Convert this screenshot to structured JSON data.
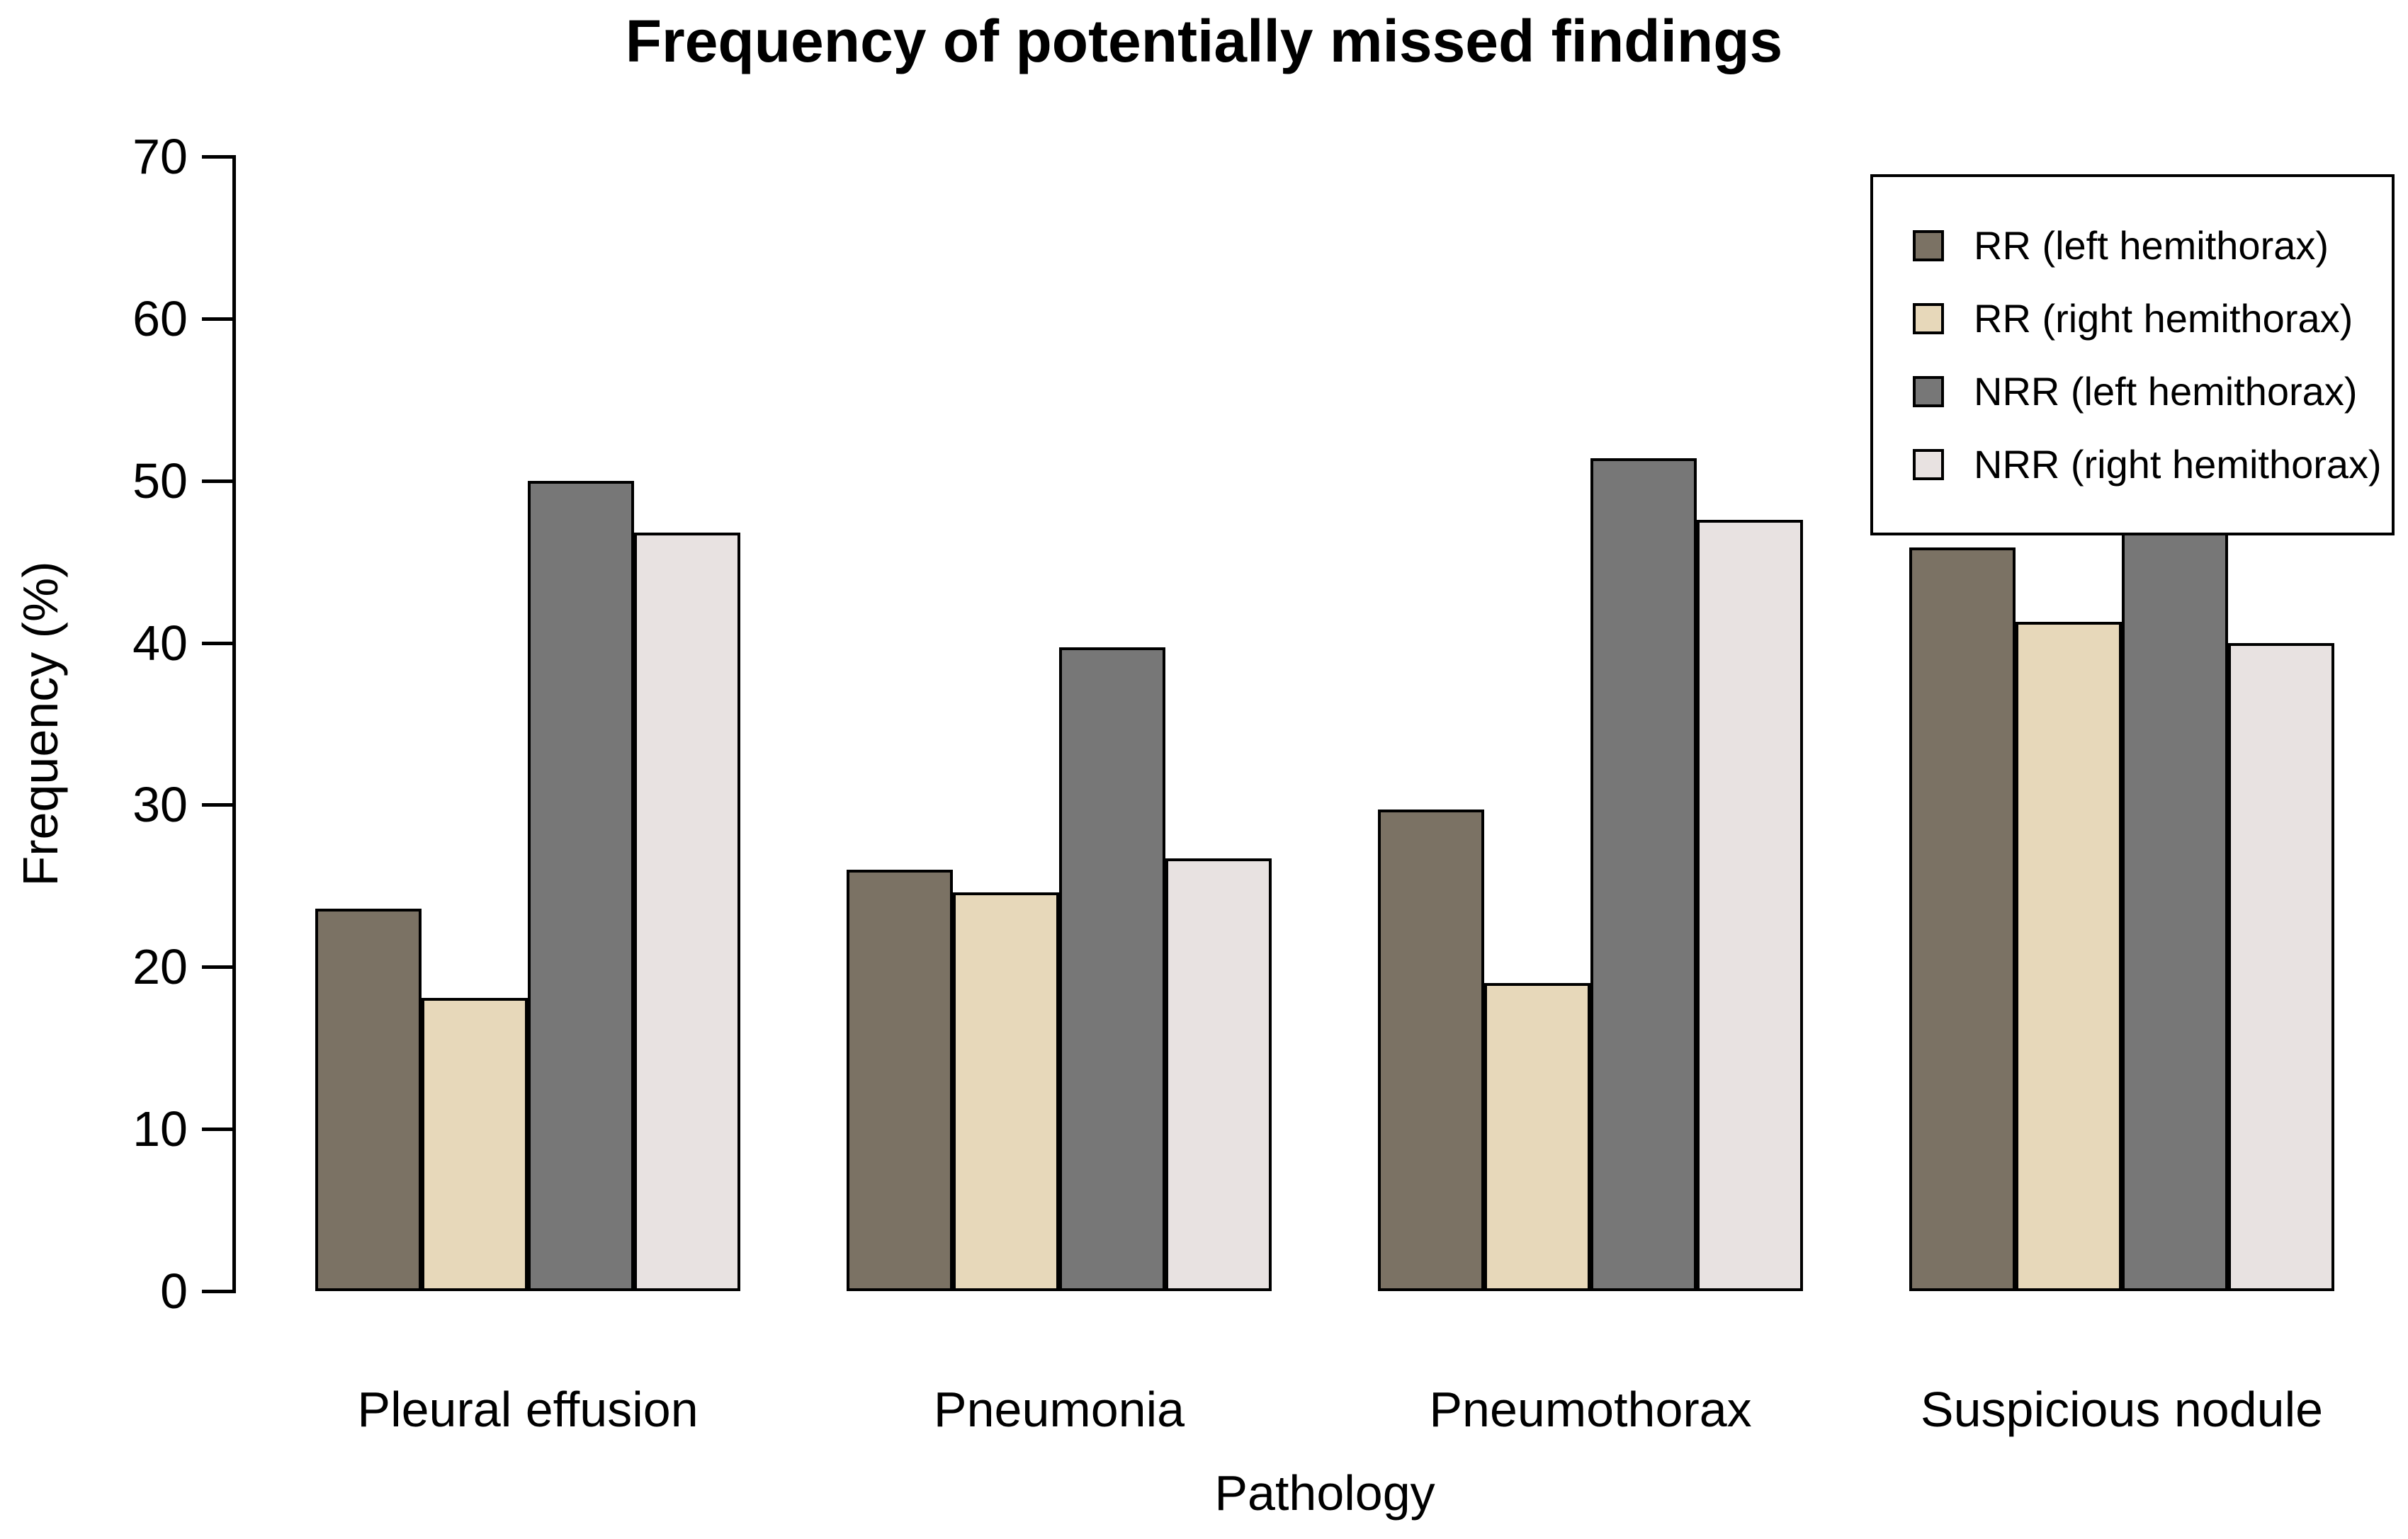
{
  "title": "Frequency of potentially missed findings",
  "chart_data": {
    "type": "bar",
    "title": "Frequency of potentially missed findings",
    "xlabel": "Pathology",
    "ylabel": "Frequency (%)",
    "categories": [
      "Pleural effusion",
      "Pneumonia",
      "Pneumothorax",
      "Suspicious nodule"
    ],
    "series": [
      {
        "name": "RR (left hemithorax)",
        "color": "#7b7264",
        "values": [
          23.6,
          26.0,
          29.7,
          45.9
        ]
      },
      {
        "name": "RR (right hemithorax)",
        "color": "#e7d8ba",
        "values": [
          18.1,
          24.6,
          19.0,
          41.3
        ]
      },
      {
        "name": "NRR (left hemithorax)",
        "color": "#777777",
        "values": [
          50.0,
          39.7,
          51.4,
          50.0
        ]
      },
      {
        "name": "NRR (right hemithorax)",
        "color": "#e8e2e1",
        "values": [
          46.8,
          26.7,
          47.6,
          40.0
        ]
      }
    ],
    "ylim": [
      0,
      70
    ],
    "y_ticks": [
      0,
      10,
      20,
      30,
      40,
      50,
      60,
      70
    ],
    "grid": false,
    "legend_position": "top-right",
    "bar_edge_color": "#000000",
    "background_color": "#ffffff"
  }
}
